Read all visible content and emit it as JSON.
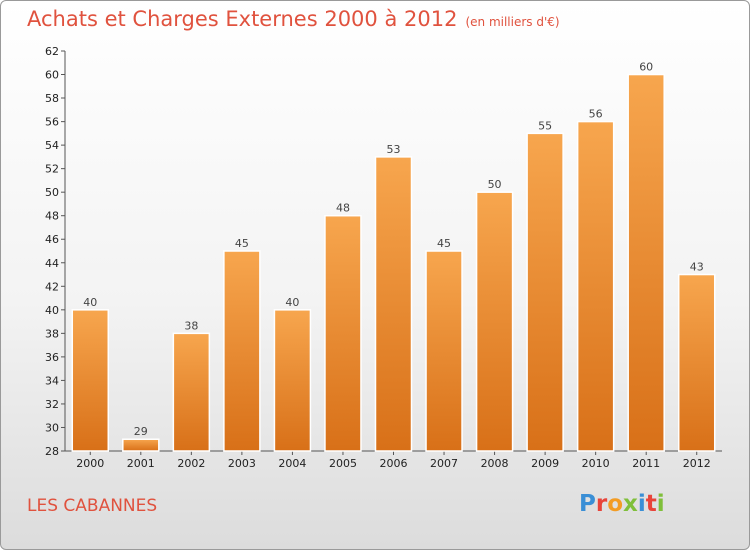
{
  "title": "Achats et Charges Externes 2000 à 2012",
  "subtitle": "(en milliers d'€)",
  "commune": "LES CABANNES",
  "logo": {
    "text": "Proxiti",
    "colors": [
      "#3a8fd6",
      "#e8443a",
      "#f39c24",
      "#7fbf3a",
      "#3a8fd6",
      "#e8443a",
      "#7fbf3a"
    ]
  },
  "colors": {
    "bar_top": "#f7a64e",
    "bar_bottom": "#d87018",
    "title": "#e0523e"
  },
  "chart_data": {
    "type": "bar",
    "categories": [
      "2000",
      "2001",
      "2002",
      "2003",
      "2004",
      "2005",
      "2006",
      "2007",
      "2008",
      "2009",
      "2010",
      "2011",
      "2012"
    ],
    "values": [
      40,
      29,
      38,
      45,
      40,
      48,
      53,
      45,
      50,
      55,
      56,
      60,
      43
    ],
    "value_labels": [
      "40",
      "29",
      "38",
      "45",
      "40",
      "48",
      "53",
      "45",
      "50",
      "55",
      "56",
      "60",
      "43"
    ],
    "yticks": [
      "28",
      "30",
      "32",
      "34",
      "36",
      "38",
      "40",
      "42",
      "44",
      "46",
      "48",
      "50",
      "52",
      "54",
      "56",
      "58",
      "60",
      "62"
    ],
    "ylim": [
      28,
      62
    ],
    "grid": false,
    "xlabel": "",
    "ylabel": ""
  }
}
